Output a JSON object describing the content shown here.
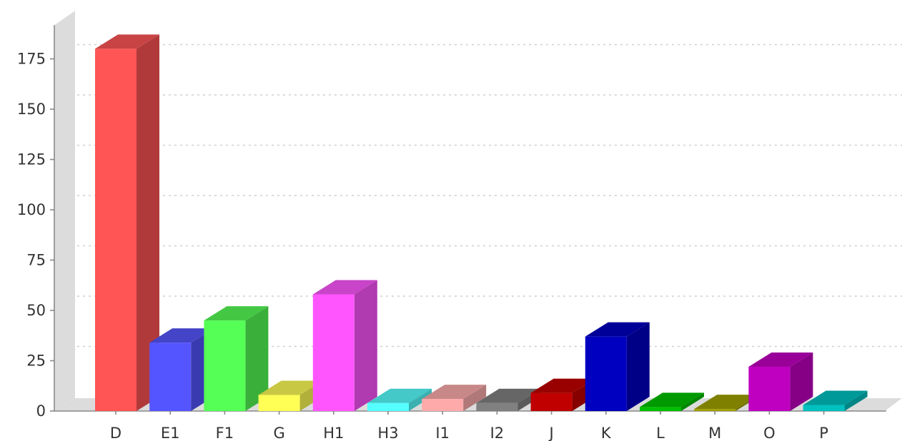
{
  "chart_data": {
    "type": "bar",
    "style": "3d",
    "categories": [
      "D",
      "E1",
      "F1",
      "G",
      "H1",
      "H3",
      "I1",
      "I2",
      "J",
      "K",
      "L",
      "M",
      "O",
      "P"
    ],
    "values": [
      180,
      34,
      45,
      8,
      58,
      4,
      6,
      4,
      9,
      37,
      2,
      1,
      22,
      3
    ],
    "colors": [
      "#ff5555",
      "#5555ff",
      "#55ff55",
      "#ffff55",
      "#ff55ff",
      "#55ffff",
      "#ffaaaa",
      "#808080",
      "#c00000",
      "#0000c0",
      "#00c000",
      "#a0a000",
      "#c000c0",
      "#00c0c0"
    ],
    "side_colors": [
      "#b03a3a",
      "#3a3ab0",
      "#3ab03a",
      "#b0b03a",
      "#b03ab0",
      "#3ab0b0",
      "#b07878",
      "#5a5a5a",
      "#860000",
      "#000086",
      "#008600",
      "#707000",
      "#860086",
      "#008686"
    ],
    "top_colors": [
      "#c84444",
      "#4444c8",
      "#44c844",
      "#c8c844",
      "#c844c8",
      "#44c8c8",
      "#c88888",
      "#666666",
      "#990000",
      "#000099",
      "#009900",
      "#808000",
      "#990099",
      "#009999"
    ],
    "yticks": [
      0,
      25,
      50,
      75,
      100,
      125,
      150,
      175
    ],
    "ylim": [
      0,
      190
    ],
    "grid": true,
    "title": "",
    "xlabel": "",
    "ylabel": ""
  }
}
